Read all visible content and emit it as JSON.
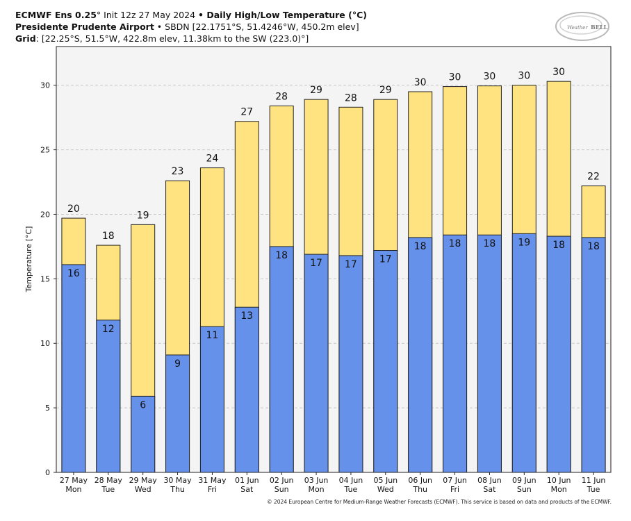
{
  "header": {
    "line1": {
      "model": "ECMWF Ens 0.25",
      "deg": "°",
      "init": " Init 12z 27 May 2024 ",
      "bullet": "•",
      "product": " Daily High/Low Temperature (°C)"
    },
    "line2": {
      "station": "Presidente Prudente Airport",
      "bullet": " • ",
      "details": "SBDN [22.1751°S, 51.4246°W, 450.2m elev]"
    },
    "line3": {
      "label": "Grid",
      "details": ": [22.25°S, 51.5°W, 422.8m elev, 11.38km to the SW (223.0)°]"
    }
  },
  "logo": {
    "text_main": "Weather",
    "text_bold": "BELL"
  },
  "copyright": "© 2024 European Centre for Medium-Range Weather Forecasts (ECMWF). This service is based on data and products of the ECMWF.",
  "chart_data": {
    "type": "bar",
    "ylabel": "Temperature [°C]",
    "ylim": [
      0,
      33
    ],
    "yticks": [
      0,
      5,
      10,
      15,
      20,
      25,
      30
    ],
    "grid": true,
    "categories": [
      "27 May",
      "28 May",
      "29 May",
      "30 May",
      "31 May",
      "01 Jun",
      "02 Jun",
      "03 Jun",
      "04 Jun",
      "05 Jun",
      "06 Jun",
      "07 Jun",
      "08 Jun",
      "09 Jun",
      "10 Jun",
      "11 Jun"
    ],
    "weekdays": [
      "Mon",
      "Tue",
      "Wed",
      "Thu",
      "Fri",
      "Sat",
      "Sun",
      "Mon",
      "Tue",
      "Wed",
      "Thu",
      "Fri",
      "Sat",
      "Sun",
      "Mon",
      "Tue"
    ],
    "series": [
      {
        "name": "High",
        "color": "#ffe380",
        "values": [
          19.7,
          17.6,
          19.2,
          22.6,
          23.6,
          27.2,
          28.4,
          28.9,
          28.3,
          28.9,
          29.5,
          29.9,
          29.95,
          30.0,
          30.3,
          22.2
        ],
        "labels": [
          "20",
          "18",
          "19",
          "23",
          "24",
          "27",
          "28",
          "29",
          "28",
          "29",
          "30",
          "30",
          "30",
          "30",
          "30",
          "22"
        ]
      },
      {
        "name": "Low",
        "color": "#6591ea",
        "values": [
          16.1,
          11.8,
          5.9,
          9.1,
          11.3,
          12.8,
          17.5,
          16.9,
          16.8,
          17.2,
          18.2,
          18.4,
          18.4,
          18.5,
          18.3,
          18.2
        ],
        "labels": [
          "16",
          "12",
          "6",
          "9",
          "11",
          "13",
          "18",
          "17",
          "17",
          "17",
          "18",
          "18",
          "18",
          "19",
          "18",
          "18"
        ]
      }
    ]
  }
}
